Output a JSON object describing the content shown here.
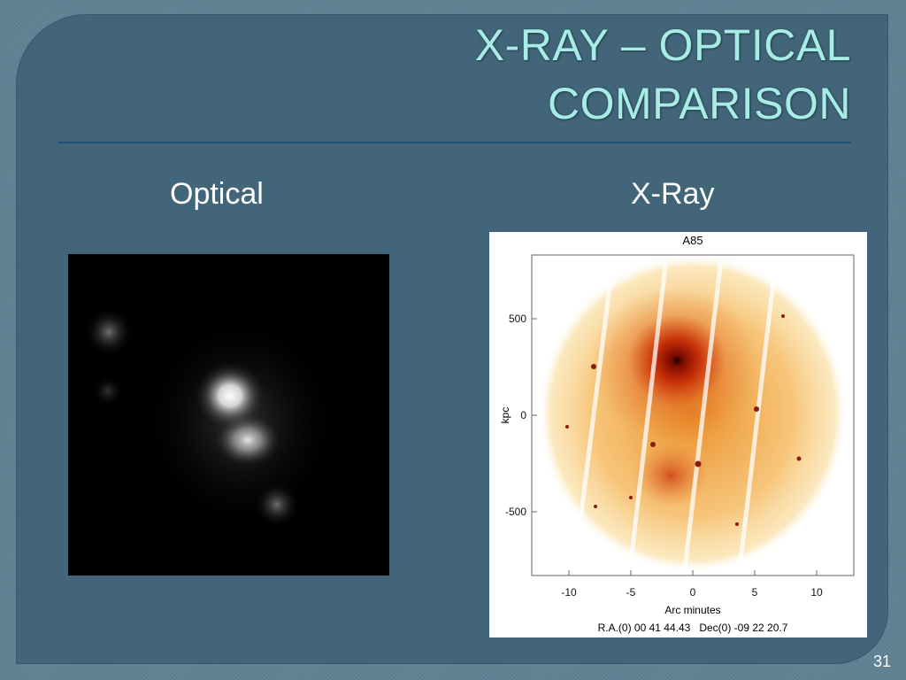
{
  "slide": {
    "title_line1": "X-RAY – OPTICAL",
    "title_line2": "COMPARISON",
    "page_number": "31"
  },
  "columns": {
    "optical_label": "Optical",
    "xray_label": "X-Ray"
  },
  "xray_figure": {
    "title": "A85",
    "ylabel": "kpc",
    "xlabel": "Arc minutes",
    "y_ticks": [
      "500",
      "0",
      "-500"
    ],
    "x_ticks": [
      "-10",
      "-5",
      "0",
      "5",
      "10"
    ],
    "coords": "R.A.(0) 00 41 44.43   Dec(0) -09 22 20.7"
  }
}
